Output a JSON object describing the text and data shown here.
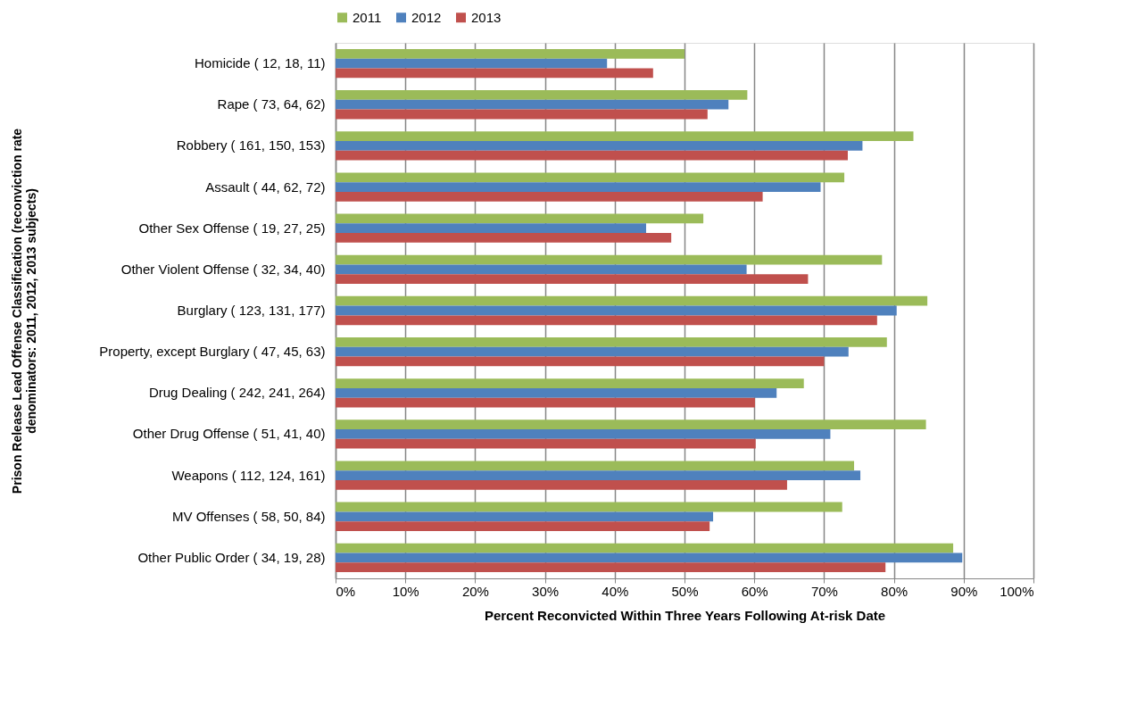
{
  "chart_data": {
    "type": "bar",
    "orientation": "horizontal",
    "xlabel": "Percent Reconvicted Within Three Years Following At-risk Date",
    "ylabel": "Prison Release Lead Offense Classification (reconviction rate\ndenominators: 2011, 2012, 2013  subjects)",
    "categories": [
      "Homicide ( 12, 18, 11)",
      "Rape ( 73, 64, 62)",
      "Robbery ( 161, 150, 153)",
      "Assault ( 44, 62, 72)",
      "Other Sex Offense ( 19, 27, 25)",
      "Other Violent Offense ( 32, 34, 40)",
      "Burglary ( 123, 131, 177)",
      "Property, except Burglary ( 47, 45, 63)",
      "Drug Dealing ( 242, 241, 264)",
      "Other Drug Offense ( 51, 41, 40)",
      "Weapons ( 112, 124, 161)",
      "MV Offenses ( 58, 50, 84)",
      "Other Public Order ( 34, 19, 28)"
    ],
    "series": [
      {
        "name": "2011",
        "color": "#9bbb59",
        "values": [
          50.0,
          59.0,
          82.8,
          72.9,
          52.7,
          78.3,
          84.8,
          79.0,
          67.1,
          84.6,
          74.3,
          72.6,
          88.5
        ]
      },
      {
        "name": "2012",
        "color": "#4f81bd",
        "values": [
          38.9,
          56.3,
          75.5,
          69.5,
          44.5,
          58.9,
          80.4,
          73.5,
          63.2,
          70.9,
          75.2,
          54.1,
          89.8
        ]
      },
      {
        "name": "2013",
        "color": "#c0504d",
        "values": [
          45.5,
          53.3,
          73.4,
          61.2,
          48.1,
          67.7,
          77.6,
          70.0,
          60.1,
          60.2,
          64.7,
          53.6,
          78.8
        ]
      }
    ],
    "xlim": [
      0,
      100
    ],
    "xticks": [
      {
        "value": 0,
        "label": "0%"
      },
      {
        "value": 10,
        "label": "10%"
      },
      {
        "value": 20,
        "label": "20%"
      },
      {
        "value": 30,
        "label": "30%"
      },
      {
        "value": 40,
        "label": "40%"
      },
      {
        "value": 50,
        "label": "50%"
      },
      {
        "value": 60,
        "label": "60%"
      },
      {
        "value": 70,
        "label": "70%"
      },
      {
        "value": 80,
        "label": "80%"
      },
      {
        "value": 90,
        "label": "90%"
      },
      {
        "value": 100,
        "label": "100%"
      }
    ],
    "grid": "x",
    "legend": "top"
  }
}
